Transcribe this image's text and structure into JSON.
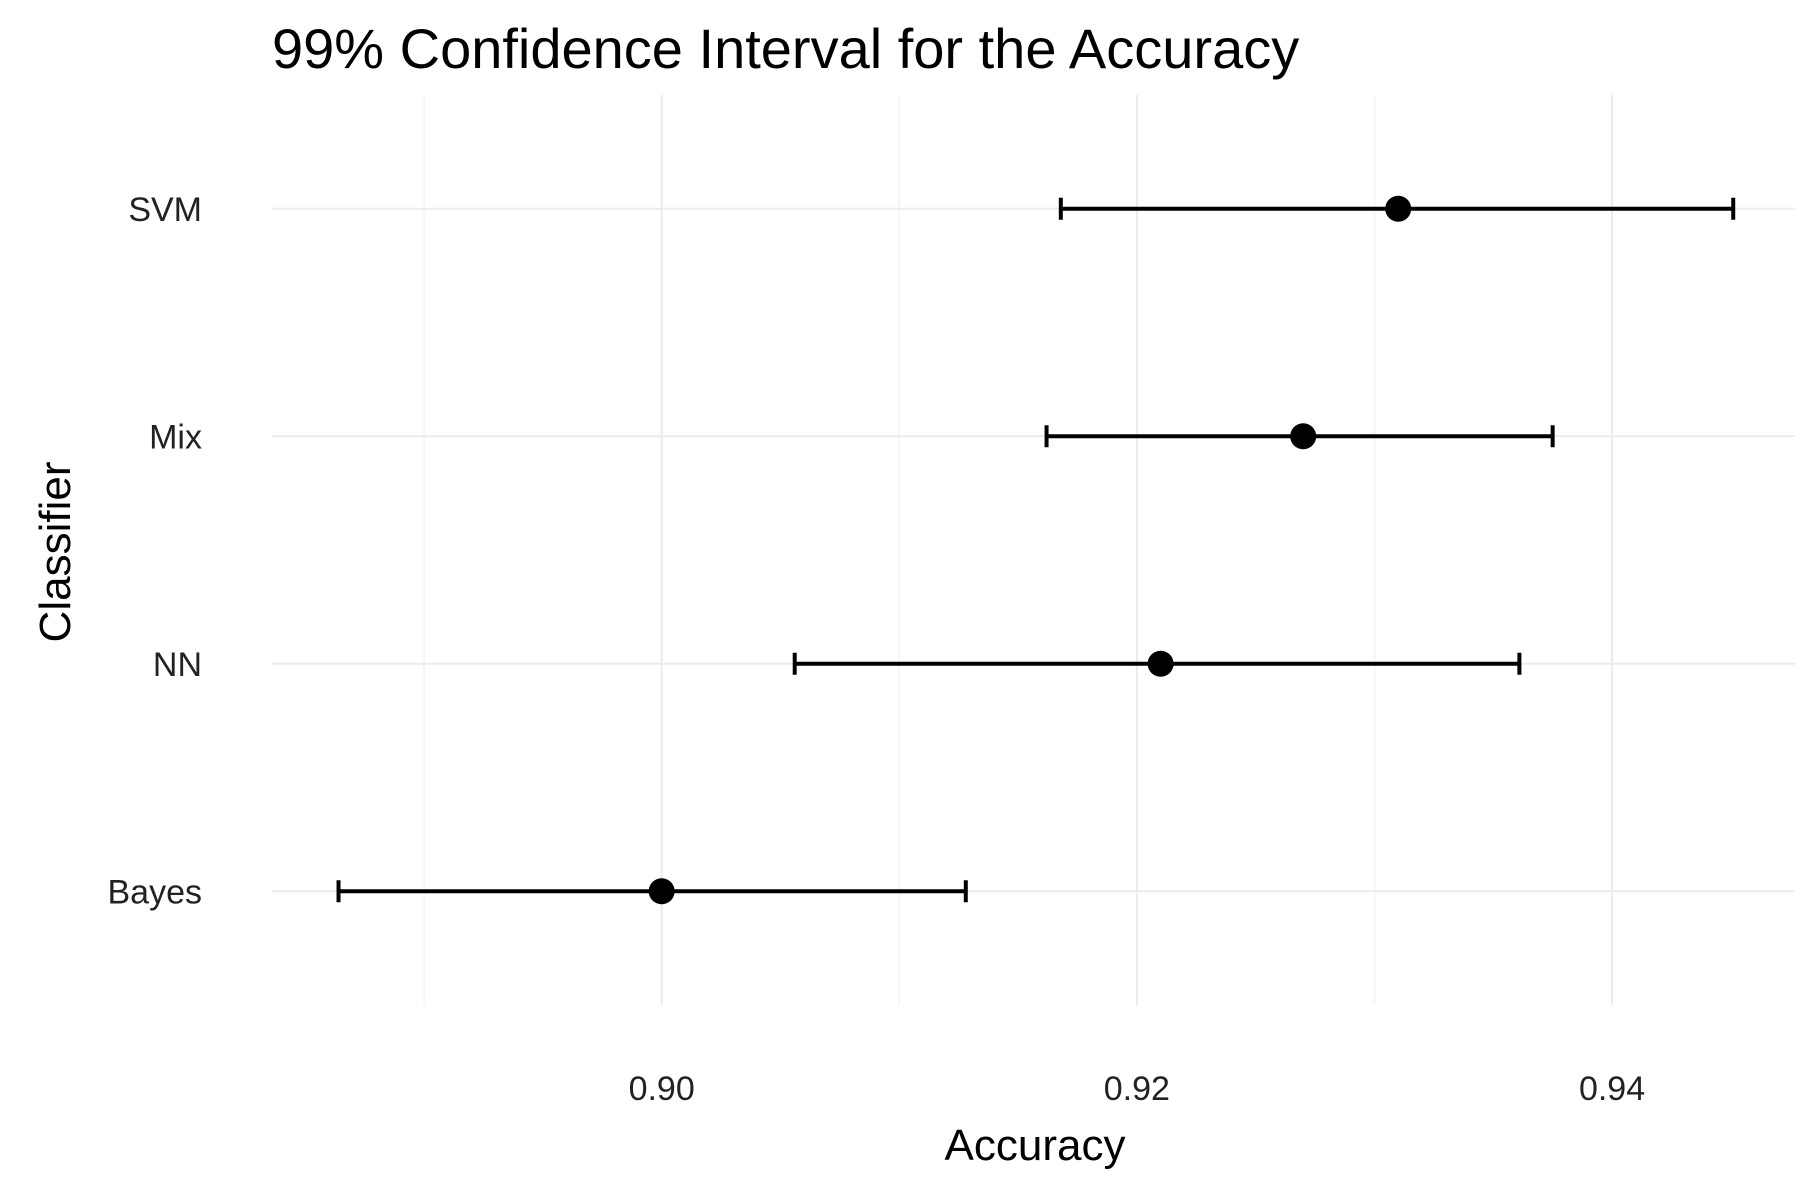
{
  "chart_data": {
    "type": "errorbar",
    "title": "99% Confidence Interval for the Accuracy",
    "xlabel": "Accuracy",
    "ylabel": "Classifier",
    "xlim": [
      0.8836,
      0.9477
    ],
    "x_ticks": [
      0.9,
      0.92,
      0.94
    ],
    "x_tick_labels": [
      "0.90",
      "0.92",
      "0.94"
    ],
    "x_minor_ticks": [
      0.89,
      0.91,
      0.93
    ],
    "categories": [
      "SVM",
      "Mix",
      "NN",
      "Bayes"
    ],
    "series": [
      {
        "points": [
          {
            "classifier": "SVM",
            "estimate": 0.931,
            "lower": 0.9168,
            "upper": 0.9451
          },
          {
            "classifier": "Mix",
            "estimate": 0.927,
            "lower": 0.9162,
            "upper": 0.9375
          },
          {
            "classifier": "NN",
            "estimate": 0.921,
            "lower": 0.9056,
            "upper": 0.9361
          },
          {
            "classifier": "Bayes",
            "estimate": 0.9,
            "lower": 0.8864,
            "upper": 0.9128
          }
        ]
      }
    ],
    "grid": true,
    "legend": "none",
    "colors": {
      "point": "#000000",
      "errorbar": "#000000",
      "grid": "#ebebeb",
      "background": "#ffffff"
    }
  }
}
